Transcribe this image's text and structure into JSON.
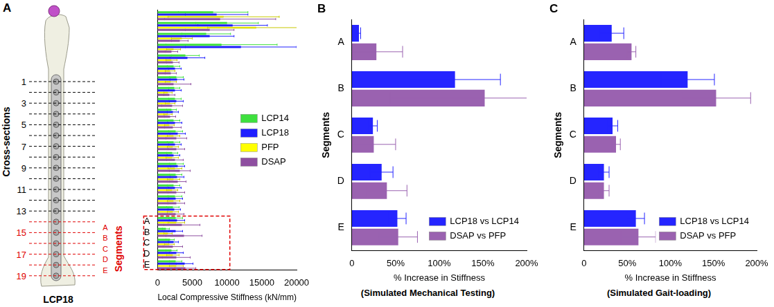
{
  "panel_labels": [
    "A",
    "B",
    "C"
  ],
  "diagram": {
    "cross_section_label": "Cross-sections",
    "cross_section_ticks": [
      "1",
      "3",
      "5",
      "7",
      "9",
      "11",
      "13",
      "15",
      "17",
      "19"
    ],
    "segments_label": "Segments",
    "segments": [
      "A",
      "B",
      "C",
      "D",
      "E"
    ],
    "caption": "LCP18"
  },
  "chart_data": [
    {
      "type": "bar",
      "orientation": "horizontal",
      "categories": [
        null,
        null,
        null,
        null,
        null,
        null,
        null,
        null,
        null,
        null,
        null,
        null,
        null,
        null,
        null,
        null,
        null,
        null,
        null,
        "A",
        "B",
        "C",
        "D",
        "E"
      ],
      "series": [
        {
          "name": "LCP14",
          "color": "#3ee03e",
          "values": [
            8000,
            10000,
            7000,
            9200,
            4000,
            2300,
            2700,
            2400,
            2500,
            2000,
            2300,
            2600,
            2300,
            2100,
            2700,
            2600,
            2300,
            2500,
            2200,
            2600,
            1200,
            1800,
            2000,
            2600
          ],
          "errors": [
            5000,
            4500,
            3500,
            8000,
            2000,
            900,
            1000,
            800,
            900,
            700,
            900,
            1000,
            900,
            800,
            1000,
            900,
            900,
            1000,
            900,
            1000,
            500,
            600,
            800,
            900
          ]
        },
        {
          "name": "LCP18",
          "color": "#1f1fff",
          "values": [
            8500,
            10800,
            7500,
            12000,
            4300,
            2500,
            2800,
            2500,
            2700,
            2200,
            2500,
            2900,
            2500,
            2300,
            2900,
            2800,
            2500,
            2600,
            2400,
            2800,
            2600,
            2300,
            2700,
            3900
          ],
          "errors": [
            4500,
            5000,
            3500,
            8000,
            2500,
            900,
            1000,
            900,
            1000,
            800,
            1000,
            1100,
            900,
            900,
            1000,
            1000,
            900,
            1000,
            900,
            1100,
            1000,
            700,
            1000,
            1200
          ]
        },
        {
          "name": "PFP",
          "color": "#ffff00",
          "values": [
            9500,
            14200,
            3500,
            2300,
            2000,
            1800,
            1900,
            1500,
            1800,
            1500,
            1700,
            2300,
            2200,
            2100,
            2500,
            2300,
            2100,
            2300,
            2200,
            2700,
            1500,
            1700,
            2200,
            2700
          ],
          "errors": [
            8000,
            7000,
            1500,
            1000,
            800,
            700,
            800,
            600,
            700,
            600,
            700,
            900,
            800,
            900,
            1000,
            900,
            800,
            900,
            800,
            1200,
            600,
            700,
            900,
            1000
          ]
        },
        {
          "name": "DSAP",
          "color": "#8e4fa0",
          "values": [
            9000,
            7500,
            3200,
            2000,
            2200,
            1900,
            2300,
            1700,
            2100,
            1800,
            2200,
            2700,
            2700,
            2500,
            3200,
            2900,
            2700,
            2700,
            2600,
            3500,
            3800,
            2200,
            2700,
            4000
          ],
          "errors": [
            8000,
            3500,
            1200,
            900,
            900,
            800,
            2500,
            800,
            1500,
            800,
            1200,
            1500,
            1200,
            1200,
            1500,
            1200,
            1200,
            1200,
            1200,
            2600,
            2600,
            1400,
            2000,
            1500
          ]
        }
      ],
      "xlabel": "Local Compressive Stiffness (kN/mm)",
      "xlim": [
        0,
        20000
      ],
      "xticks": [
        0,
        5000,
        10000,
        15000,
        20000
      ],
      "legend": "right",
      "grid": false
    },
    {
      "type": "bar",
      "orientation": "horizontal",
      "categories": [
        "A",
        "B",
        "C",
        "D",
        "E"
      ],
      "series": [
        {
          "name": "LCP18 vs LCP14",
          "color": "#2525ff",
          "values": [
            8,
            118,
            24,
            34,
            52
          ],
          "errors": [
            2,
            52,
            5,
            13,
            10
          ]
        },
        {
          "name": "DSAP vs PFP",
          "color": "#9a62b0",
          "values": [
            28,
            152,
            25,
            40,
            53
          ],
          "errors": [
            30,
            108,
            25,
            23,
            22
          ]
        }
      ],
      "xlabel": "% Increase in Stiffness",
      "subtitle": "(Simulated Mechanical Testing)",
      "ylabel": "Segments",
      "xlim": [
        0,
        200
      ],
      "xticks": [
        0,
        {
          "value": 50,
          "label": "50%"
        },
        {
          "value": 100,
          "label": "100%"
        },
        {
          "value": 150,
          "label": "150%"
        },
        {
          "value": 200,
          "label": "200%"
        }
      ],
      "legend": "lower right",
      "grid": false
    },
    {
      "type": "bar",
      "orientation": "horizontal",
      "categories": [
        "A",
        "B",
        "C",
        "D",
        "E"
      ],
      "series": [
        {
          "name": "LCP18 vs LCP14",
          "color": "#2525ff",
          "values": [
            32,
            120,
            33,
            23,
            60
          ],
          "errors": [
            14,
            31,
            6,
            6,
            10
          ]
        },
        {
          "name": "DSAP vs PFP",
          "color": "#9a62b0",
          "values": [
            55,
            153,
            37,
            23,
            63
          ],
          "errors": [
            5,
            40,
            5,
            6,
            20
          ]
        }
      ],
      "xlabel": "% Increase in Stiffness",
      "subtitle": "(Simulated Gait-loading)",
      "ylabel": "Segments",
      "xlim": [
        0,
        200
      ],
      "xticks": [
        0,
        {
          "value": 50,
          "label": "50%"
        },
        {
          "value": 100,
          "label": "100%"
        },
        {
          "value": 150,
          "label": "150%"
        },
        {
          "value": 200,
          "label": "200%"
        }
      ],
      "legend": "lower right",
      "grid": false
    }
  ]
}
